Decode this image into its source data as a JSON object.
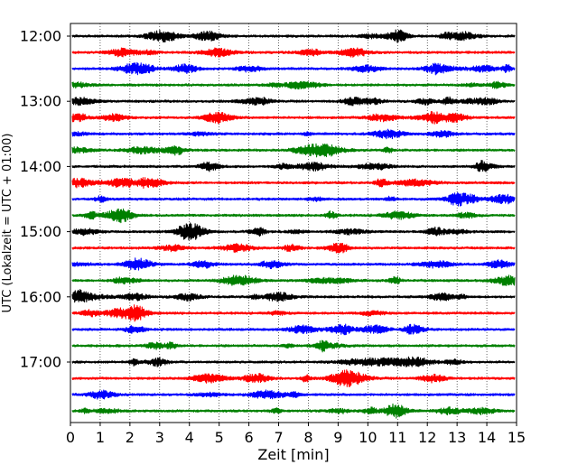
{
  "chart_data": {
    "type": "line",
    "subtype": "helicorder",
    "xlabel": "Zeit  [min]",
    "ylabel": "UTC (Lokalzeit = UTC + 01:00)",
    "xlim": [
      0,
      15
    ],
    "x_ticks": [
      0,
      1,
      2,
      3,
      4,
      5,
      6,
      7,
      8,
      9,
      10,
      11,
      12,
      13,
      14,
      15
    ],
    "x_tick_labels": [
      "0",
      "1",
      "2",
      "3",
      "4",
      "5",
      "6",
      "7",
      "8",
      "9",
      "10",
      "11",
      "12",
      "13",
      "14",
      "15"
    ],
    "y_tick_labels": [
      "12:00",
      "13:00",
      "14:00",
      "15:00",
      "16:00",
      "17:00"
    ],
    "minutes_per_trace": 15,
    "trace_count": 24,
    "trace_color_cycle": [
      "#000000",
      "#ff0000",
      "#0000ff",
      "#008000"
    ],
    "vertical_grid": "dotted",
    "horizontal_grid": false
  }
}
